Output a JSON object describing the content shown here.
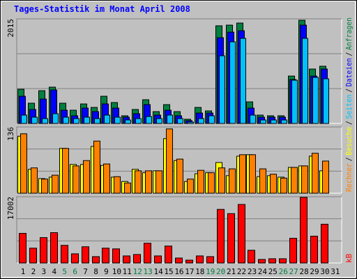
{
  "legend_separator": "/",
  "chart_data": [
    {
      "type": "bar",
      "title": "Tages-Statistik im Monat April 2008",
      "ylim": [
        0,
        2015
      ],
      "yticks": [
        2015
      ],
      "grid": true,
      "series": [
        {
          "name": "Anfragen",
          "color": "#008040",
          "values": [
            658,
            390,
            631,
            699,
            390,
            255,
            376,
            309,
            524,
            403,
            148,
            269,
            457,
            228,
            363,
            228,
            81,
            309,
            242,
            1881,
            1894,
            1934,
            416,
            161,
            148,
            148,
            913,
            1988,
            1048,
            1102,
            null
          ]
        },
        {
          "name": "Dateien",
          "color": "#0000ff",
          "values": [
            524,
            269,
            470,
            645,
            255,
            148,
            296,
            228,
            376,
            296,
            121,
            188,
            363,
            161,
            255,
            148,
            54,
            201,
            201,
            1652,
            1759,
            1786,
            296,
            121,
            121,
            121,
            846,
            1894,
            913,
            1048,
            null
          ]
        },
        {
          "name": "Seiten",
          "color": "#00c0ff",
          "values": [
            161,
            121,
            94,
            188,
            121,
            94,
            121,
            94,
            161,
            121,
            67,
            94,
            134,
            94,
            161,
            94,
            27,
            94,
            148,
            1303,
            1572,
            1639,
            161,
            67,
            67,
            67,
            833,
            1639,
            887,
            860,
            null
          ]
        }
      ]
    },
    {
      "type": "bar",
      "ylim": [
        0,
        136
      ],
      "yticks": [
        136
      ],
      "grid": true,
      "series": [
        {
          "name": "Besuche",
          "color": "#ffff00",
          "values": [
            117,
            49,
            30,
            33,
            92,
            59,
            59,
            96,
            57,
            33,
            24,
            49,
            42,
            46,
            112,
            67,
            24,
            40,
            42,
            63,
            36,
            76,
            79,
            34,
            36,
            33,
            53,
            56,
            76,
            46,
            null
          ]
        },
        {
          "name": "Rechner",
          "color": "#ff8000",
          "values": [
            122,
            52,
            29,
            37,
            92,
            56,
            67,
            107,
            60,
            34,
            21,
            46,
            46,
            46,
            132,
            70,
            29,
            47,
            42,
            52,
            50,
            79,
            79,
            50,
            39,
            31,
            53,
            56,
            82,
            66,
            null
          ]
        }
      ]
    },
    {
      "type": "bar",
      "ylim": [
        0,
        17002
      ],
      "yticks": [
        17002
      ],
      "grid": true,
      "categories": [
        "1",
        "2",
        "3",
        "4",
        "5",
        "6",
        "7",
        "8",
        "9",
        "10",
        "11",
        "12",
        "13",
        "14",
        "15",
        "16",
        "17",
        "18",
        "19",
        "20",
        "21",
        "22",
        "23",
        "24",
        "25",
        "26",
        "27",
        "28",
        "29",
        "30",
        "31"
      ],
      "category_colors": [
        "#000000",
        "#000000",
        "#000000",
        "#000000",
        "#008040",
        "#008040",
        "#000000",
        "#000000",
        "#000000",
        "#000000",
        "#000000",
        "#008040",
        "#008040",
        "#000000",
        "#000000",
        "#000000",
        "#000000",
        "#000000",
        "#008040",
        "#008040",
        "#000000",
        "#000000",
        "#000000",
        "#000000",
        "#000000",
        "#008040",
        "#008040",
        "#000000",
        "#000000",
        "#000000",
        "#000000"
      ],
      "series": [
        {
          "name": "kB",
          "color": "#ff0000",
          "values": [
            7597,
            3798,
            6511,
            7778,
            4522,
            2351,
            4160,
            1628,
            3798,
            3617,
            1809,
            2170,
            5064,
            1809,
            4341,
            1266,
            724,
            1809,
            1628,
            13746,
            12661,
            15013,
            3256,
            904,
            1085,
            1085,
            6331,
            16821,
            6873,
            9948,
            null
          ]
        }
      ]
    }
  ]
}
